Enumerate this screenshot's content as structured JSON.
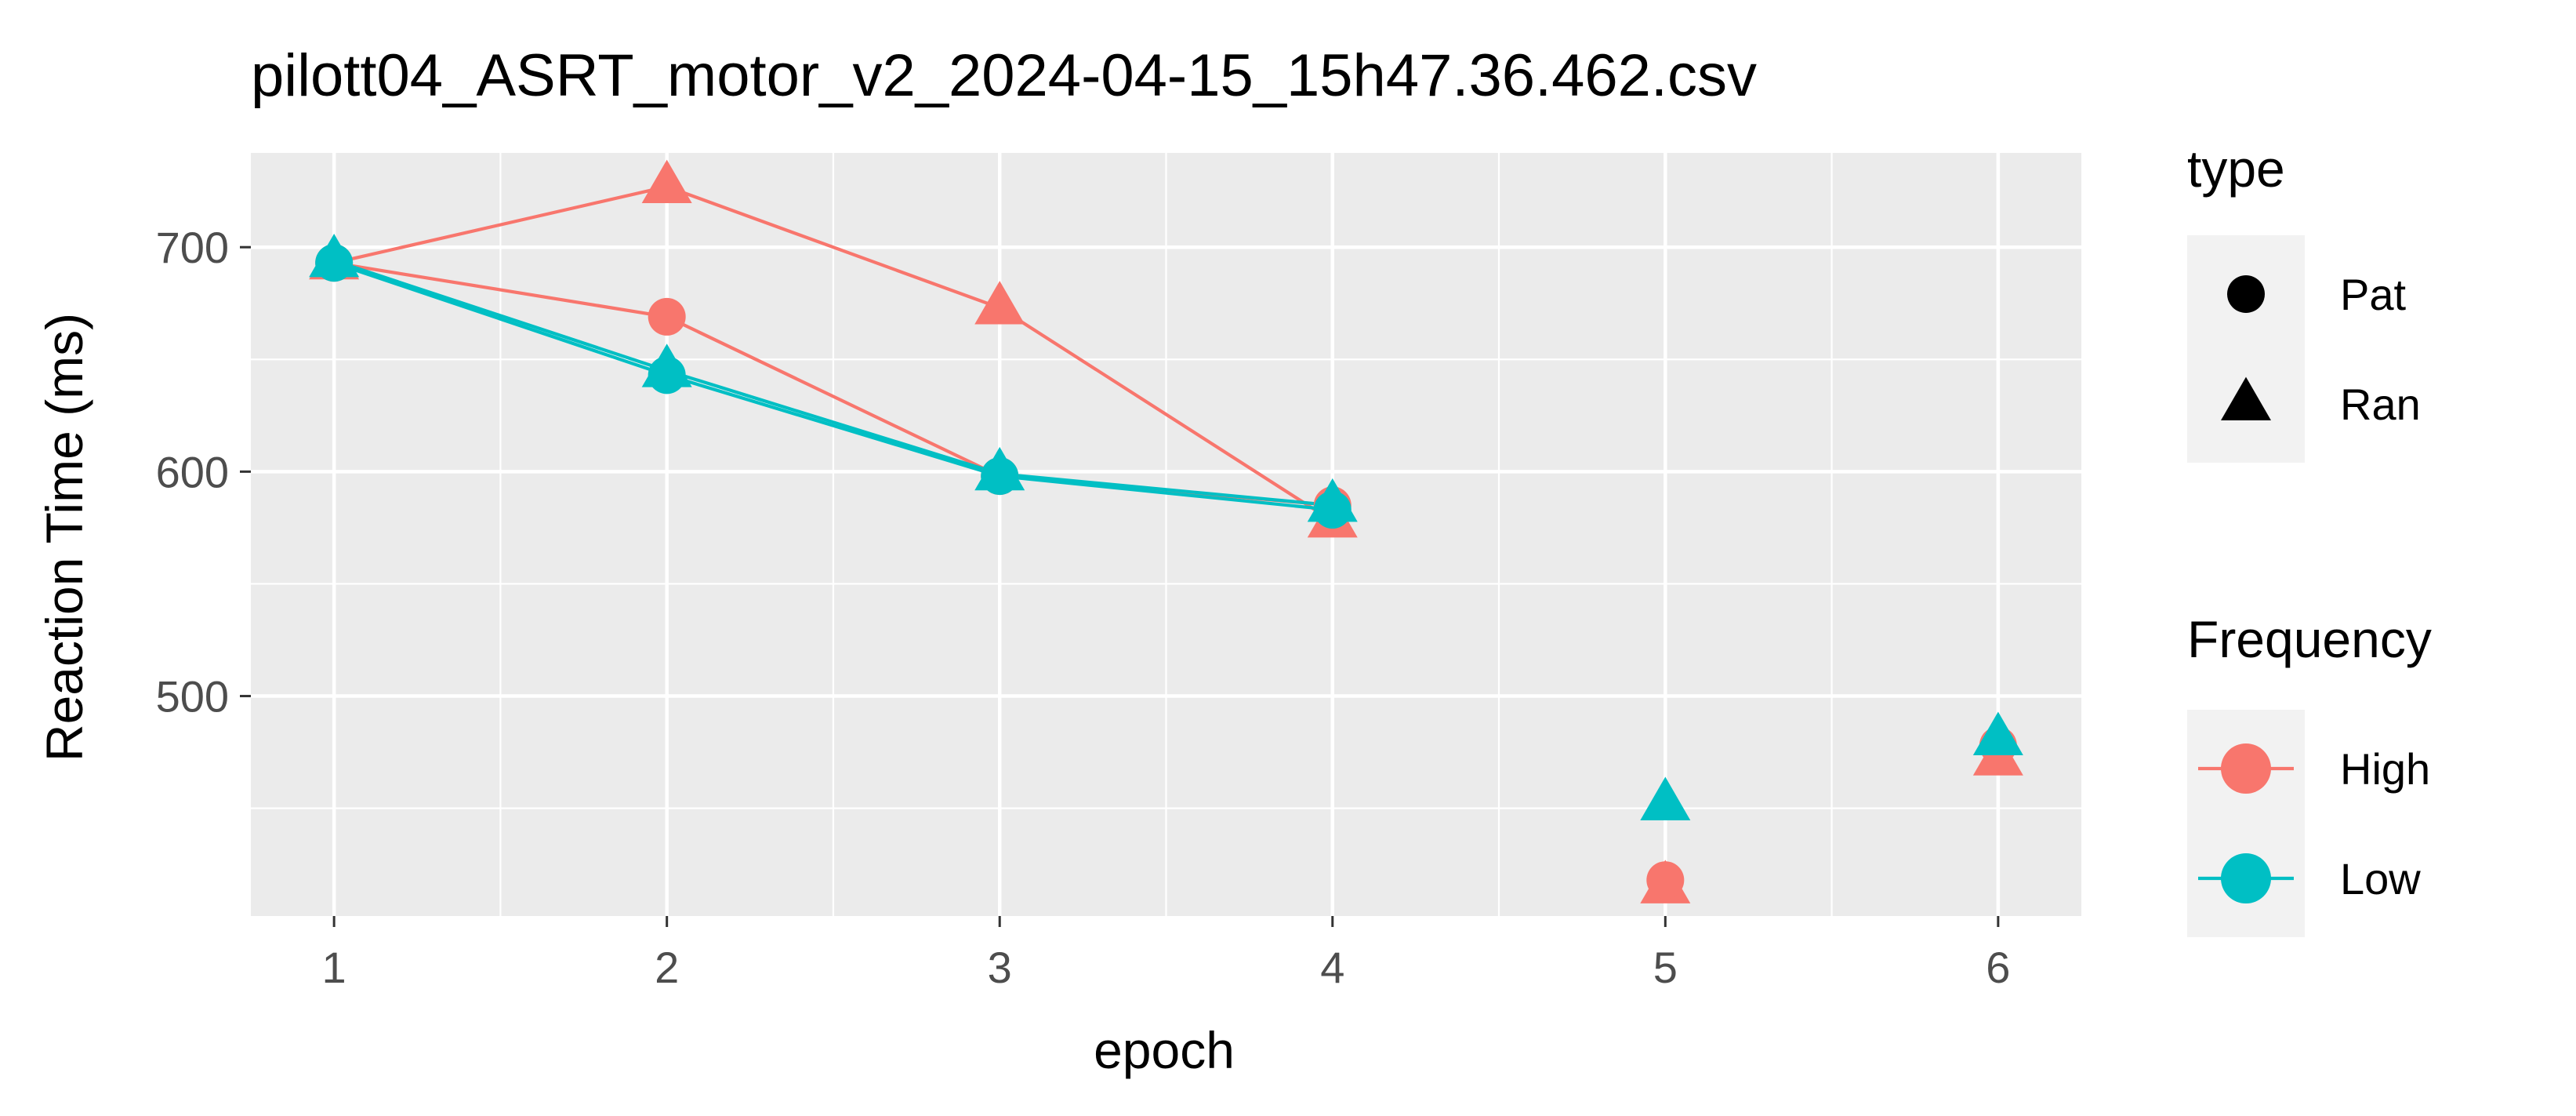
{
  "chart_data": {
    "type": "line",
    "title": "pilott04_ASRT_motor_v2_2024-04-15_15h47.36.462.csv",
    "xlabel": "epoch",
    "ylabel": "Reaction Time (ms)",
    "x_ticks": [
      "1",
      "2",
      "3",
      "4",
      "5",
      "6"
    ],
    "y_ticks": [
      "500",
      "600",
      "700"
    ],
    "xlim": [
      0.75,
      6.25
    ],
    "ylim": [
      402,
      742
    ],
    "grid": true,
    "background": "#ebebeb",
    "legend_position": "right",
    "legends": {
      "shape": {
        "title": "type",
        "entries": [
          {
            "label": "Pat",
            "shape": "circle"
          },
          {
            "label": "Ran",
            "shape": "triangle"
          }
        ]
      },
      "color": {
        "title": "Frequency",
        "entries": [
          {
            "label": "High",
            "color": "#f8766d"
          },
          {
            "label": "Low",
            "color": "#00bfc4"
          }
        ]
      }
    },
    "series": [
      {
        "frequency": "High",
        "type": "Ran",
        "color": "#f8766d",
        "shape": "triangle",
        "connected_x": [
          1,
          2,
          3,
          4
        ],
        "points": [
          {
            "x": 1,
            "y": 693
          },
          {
            "x": 2,
            "y": 727
          },
          {
            "x": 3,
            "y": 673
          },
          {
            "x": 4,
            "y": 578
          },
          {
            "x": 5,
            "y": 415
          },
          {
            "x": 6,
            "y": 472
          }
        ]
      },
      {
        "frequency": "High",
        "type": "Pat",
        "color": "#f8766d",
        "shape": "circle",
        "connected_x": [
          1,
          2,
          3,
          4
        ],
        "points": [
          {
            "x": 1,
            "y": 693
          },
          {
            "x": 2,
            "y": 669
          },
          {
            "x": 3,
            "y": 598
          },
          {
            "x": 4,
            "y": 585
          },
          {
            "x": 5,
            "y": 418
          },
          {
            "x": 6,
            "y": 478
          }
        ]
      },
      {
        "frequency": "Low",
        "type": "Ran",
        "color": "#00bfc4",
        "shape": "triangle",
        "connected_x": [
          1,
          2,
          3,
          4
        ],
        "points": [
          {
            "x": 1,
            "y": 694
          },
          {
            "x": 2,
            "y": 645
          },
          {
            "x": 3,
            "y": 599
          },
          {
            "x": 4,
            "y": 585
          },
          {
            "x": 5,
            "y": 452
          },
          {
            "x": 6,
            "y": 481
          }
        ]
      },
      {
        "frequency": "Low",
        "type": "Pat",
        "color": "#00bfc4",
        "shape": "circle",
        "connected_x": [
          1,
          2,
          3,
          4
        ],
        "points": [
          {
            "x": 1,
            "y": 693
          },
          {
            "x": 2,
            "y": 643
          },
          {
            "x": 3,
            "y": 598
          },
          {
            "x": 4,
            "y": 583
          }
        ]
      }
    ]
  }
}
